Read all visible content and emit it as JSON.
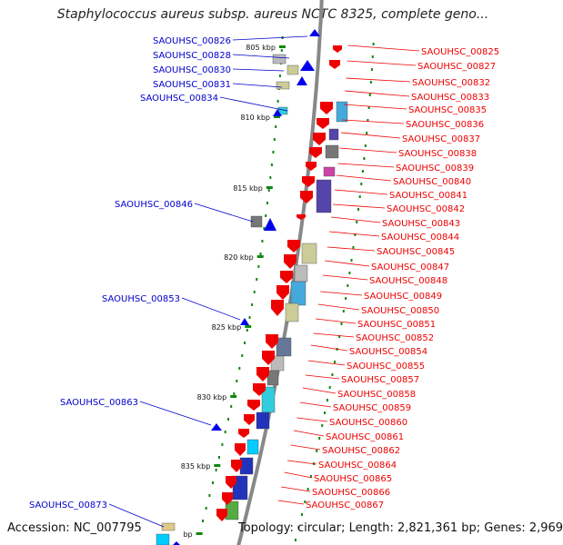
{
  "title": "Staphylococcus aureus subsp. aureus NCTC 8325, complete geno...",
  "footer": {
    "accession": "Accession: NC_007795",
    "topology": "Topology: circular; Length: 2,821,361 bp; Genes: 2,969"
  },
  "colors": {
    "plus_strand_label": "#0000cc",
    "minus_strand_label": "#ee0000",
    "plus_arrow": "#0000ee",
    "minus_arrow": "#ee0000",
    "backbone": "#888888",
    "tick": "#118811"
  },
  "scale_labels": [
    "805 kbp",
    "810 kbp",
    "815 kbp",
    "820 kbp",
    "825 kbp",
    "830 kbp",
    "835 kbp",
    "bp"
  ],
  "left_genes": [
    "SAOUHSC_00826",
    "SAOUHSC_00828",
    "SAOUHSC_00830",
    "SAOUHSC_00831",
    "SAOUHSC_00834",
    "SAOUHSC_00846",
    "SAOUHSC_00853",
    "SAOUHSC_00863",
    "SAOUHSC_00873"
  ],
  "right_genes": [
    "SAOUHSC_00825",
    "SAOUHSC_00827",
    "SAOUHSC_00832",
    "SAOUHSC_00833",
    "SAOUHSC_00835",
    "SAOUHSC_00836",
    "SAOUHSC_00837",
    "SAOUHSC_00838",
    "SAOUHSC_00839",
    "SAOUHSC_00840",
    "SAOUHSC_00841",
    "SAOUHSC_00842",
    "SAOUHSC_00843",
    "SAOUHSC_00844",
    "SAOUHSC_00845",
    "SAOUHSC_00847",
    "SAOUHSC_00848",
    "SAOUHSC_00849",
    "SAOUHSC_00850",
    "SAOUHSC_00851",
    "SAOUHSC_00852",
    "SAOUHSC_00854",
    "SAOUHSC_00855",
    "SAOUHSC_00857",
    "SAOUHSC_00858",
    "SAOUHSC_00859",
    "SAOUHSC_00860",
    "SAOUHSC_00861",
    "SAOUHSC_00862",
    "SAOUHSC_00864",
    "SAOUHSC_00865",
    "SAOUHSC_00866",
    "SAOUHSC_00867"
  ]
}
